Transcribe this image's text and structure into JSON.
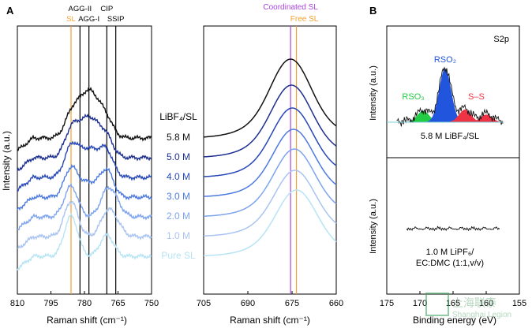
{
  "chart_data": [
    {
      "panel": "A",
      "type": "line",
      "subtype": "stacked-spectra",
      "xlabel": "Raman shift (cm⁻¹)",
      "ylabel": "Intensity (a.u.)",
      "xlim": [
        810,
        750
      ],
      "xticks": [
        810,
        795,
        780,
        765,
        750
      ],
      "reference_lines": [
        {
          "label": "SL",
          "x": 786,
          "color": "#f5a030"
        },
        {
          "label": "AGG-II",
          "x": 782,
          "color": "#000000"
        },
        {
          "label": "AGG-I",
          "x": 778,
          "color": "#000000"
        },
        {
          "label": "CIP",
          "x": 770,
          "color": "#000000"
        },
        {
          "label": "SSIP",
          "x": 766,
          "color": "#000000"
        }
      ],
      "legend_title": "LiBF₄/SL",
      "series": [
        {
          "name": "5.8 M",
          "color": "#111111",
          "peaks": [
            [
              786,
              0.35,
              3
            ],
            [
              778,
              1.0,
              5
            ],
            [
              770,
              0.25,
              3
            ]
          ]
        },
        {
          "name": "5.0 M",
          "color": "#1d2f8f",
          "peaks": [
            [
              786,
              0.45,
              3
            ],
            [
              778,
              0.85,
              5
            ],
            [
              770,
              0.3,
              3
            ]
          ]
        },
        {
          "name": "4.0 M",
          "color": "#2747b8",
          "peaks": [
            [
              786,
              0.55,
              3
            ],
            [
              778,
              0.6,
              5
            ],
            [
              770,
              0.45,
              3
            ]
          ]
        },
        {
          "name": "3.0 M",
          "color": "#4d7ae0",
          "peaks": [
            [
              786,
              0.6,
              3
            ],
            [
              778,
              0.3,
              4
            ],
            [
              770,
              0.55,
              3
            ]
          ]
        },
        {
          "name": "2.0 M",
          "color": "#7ea4ee",
          "peaks": [
            [
              786,
              0.65,
              3
            ],
            [
              770,
              0.5,
              3
            ],
            [
              766,
              0.25,
              3
            ]
          ]
        },
        {
          "name": "1.0 M",
          "color": "#a9c4f2",
          "peaks": [
            [
              786,
              0.75,
              3
            ],
            [
              770,
              0.45,
              3
            ],
            [
              766,
              0.25,
              3
            ]
          ]
        },
        {
          "name": "Pure SL",
          "color": "#b7e4f5",
          "peaks": [
            [
              786,
              0.85,
              3
            ],
            [
              770,
              0.45,
              3
            ]
          ]
        }
      ]
    },
    {
      "panel": "A-right",
      "type": "line",
      "subtype": "stacked-spectra",
      "xlabel": "Raman shift (cm⁻¹)",
      "xlim": [
        705,
        660
      ],
      "xticks": [
        705,
        690,
        675,
        660
      ],
      "reference_lines": [
        {
          "label": "Coordinated SL",
          "x": 675.5,
          "color": "#aa44dd"
        },
        {
          "label": "Free SL",
          "x": 673.5,
          "color": "#f5a030"
        }
      ],
      "series": [
        {
          "name": "5.8 M",
          "color": "#111111",
          "center": 675.5,
          "height": 1.0
        },
        {
          "name": "5.0 M",
          "color": "#1d2f8f",
          "center": 675.2,
          "height": 0.92
        },
        {
          "name": "4.0 M",
          "color": "#2747b8",
          "center": 674.9,
          "height": 0.88
        },
        {
          "name": "3.0 M",
          "color": "#4d7ae0",
          "center": 674.5,
          "height": 0.86
        },
        {
          "name": "2.0 M",
          "color": "#7ea4ee",
          "center": 674.2,
          "height": 0.86
        },
        {
          "name": "1.0 M",
          "color": "#a9c4f2",
          "center": 674.0,
          "height": 0.84
        },
        {
          "name": "Pure SL",
          "color": "#b7e4f5",
          "center": 673.5,
          "height": 0.84
        }
      ]
    },
    {
      "panel": "B",
      "type": "line",
      "subtype": "xps",
      "title": "S2p",
      "xlabel": "Binding energy (eV)",
      "ylabel": "Intensity (a.u.)",
      "xlim": [
        175,
        155
      ],
      "xticks": [
        175,
        170,
        165,
        160,
        155
      ],
      "top": {
        "label": "5.8 M LiBF₄/SL",
        "peaks": [
          {
            "name": "RSO₃",
            "center": 169.5,
            "height": 0.18,
            "color": "#22cc44"
          },
          {
            "name": "RSO₂",
            "center": 166.2,
            "height": 0.85,
            "color": "#2255dd"
          },
          {
            "name": "S–S",
            "center": 163.2,
            "height": 0.2,
            "color": "#ee3344"
          },
          {
            "name": "",
            "center": 160.0,
            "height": 0.12,
            "color": "#ee3344"
          }
        ]
      },
      "bottom": {
        "label_line1": "1.0 M LiPF₆/",
        "label_line2": "EC:DMC (1:1,v/v)"
      }
    }
  ],
  "labels": {
    "panel_a": "A",
    "panel_b": "B",
    "watermark_cn": "上海联泰",
    "watermark_en": "Shanghai Legion"
  }
}
